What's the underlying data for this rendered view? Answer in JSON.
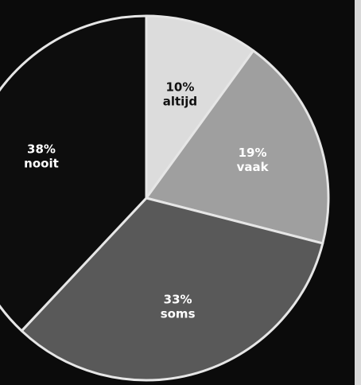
{
  "chart_data": {
    "type": "pie",
    "slices": [
      {
        "value": 10,
        "percent_label": "10%",
        "category": "altijd",
        "color": "#dcdcdc",
        "text_color": "#111111"
      },
      {
        "value": 19,
        "percent_label": "19%",
        "category": "vaak",
        "color": "#9f9f9f",
        "text_color": "#ffffff"
      },
      {
        "value": 33,
        "percent_label": "33%",
        "category": "soms",
        "color": "#595959",
        "text_color": "#ffffff"
      },
      {
        "value": 38,
        "percent_label": "38%",
        "category": "nooit",
        "color": "#0d0d0d",
        "text_color": "#ffffff"
      }
    ]
  }
}
